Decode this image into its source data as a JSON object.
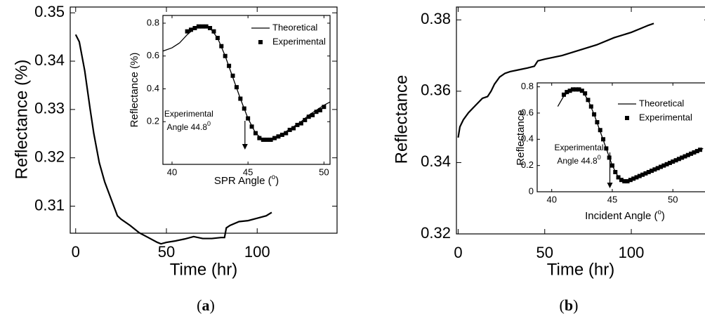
{
  "chart_data": [
    {
      "type": "line",
      "x_label": "Time (hr)",
      "y_label": "Reflectance (%)",
      "caption": [
        "(",
        "a",
        ")"
      ],
      "x": [
        0,
        2,
        5,
        8,
        10,
        13,
        16,
        20,
        23,
        25,
        30,
        35,
        40,
        45,
        47,
        50,
        55,
        60,
        65,
        70,
        75,
        80,
        82,
        83,
        85,
        90,
        95,
        100,
        105,
        108
      ],
      "series": [
        {
          "color": "#000000",
          "values": [
            0.3455,
            0.344,
            0.338,
            0.33,
            0.325,
            0.319,
            0.315,
            0.311,
            0.308,
            0.3073,
            0.306,
            0.3045,
            0.3035,
            0.3025,
            0.3022,
            0.3025,
            0.3028,
            0.3032,
            0.3037,
            0.3033,
            0.3033,
            0.3035,
            0.3035,
            0.3055,
            0.306,
            0.3068,
            0.307,
            0.3075,
            0.308,
            0.3087
          ]
        }
      ],
      "xlim": [
        -3,
        144
      ],
      "xticks": [
        0,
        50,
        100
      ],
      "ylim": [
        0.3044,
        0.3512
      ],
      "yticks": [
        0.31,
        0.32,
        0.33,
        0.34,
        0.35
      ]
    },
    {
      "type": "line",
      "x_label": [
        "SPR Angle (",
        "o",
        ")"
      ],
      "y_label": "Reflectance (%)",
      "legend": "upper right",
      "series": [
        {
          "name": "Theoretical",
          "color": "#000000",
          "marker": "none",
          "x": [
            39.4,
            40,
            40.5,
            41,
            41.5,
            42,
            42.5,
            43,
            43.5,
            44,
            44.5,
            45,
            45.5,
            46,
            46.5,
            47,
            47.5,
            48,
            48.5,
            49,
            49.5,
            50,
            50.4
          ],
          "values": [
            0.63,
            0.65,
            0.68,
            0.73,
            0.77,
            0.78,
            0.77,
            0.71,
            0.6,
            0.47,
            0.34,
            0.22,
            0.13,
            0.09,
            0.09,
            0.11,
            0.14,
            0.17,
            0.2,
            0.24,
            0.27,
            0.3,
            0.32
          ]
        },
        {
          "name": "Experimental",
          "color": "#000000",
          "marker": "square",
          "x": [
            41.0,
            41.25,
            41.5,
            41.75,
            42.0,
            42.25,
            42.5,
            42.75,
            43.0,
            43.25,
            43.5,
            43.75,
            44.0,
            44.25,
            44.5,
            44.75,
            45.0,
            45.25,
            45.5,
            45.75,
            46.0,
            46.25,
            46.5,
            46.75,
            47.0,
            47.25,
            47.5,
            47.75,
            48.0,
            48.25,
            48.5,
            48.75,
            49.0,
            49.25,
            49.5,
            49.75,
            50.0
          ],
          "values": [
            0.75,
            0.76,
            0.77,
            0.78,
            0.78,
            0.78,
            0.77,
            0.75,
            0.71,
            0.66,
            0.6,
            0.54,
            0.48,
            0.41,
            0.34,
            0.28,
            0.22,
            0.17,
            0.13,
            0.1,
            0.09,
            0.09,
            0.09,
            0.1,
            0.11,
            0.12,
            0.13,
            0.15,
            0.16,
            0.18,
            0.19,
            0.21,
            0.23,
            0.24,
            0.26,
            0.27,
            0.29
          ]
        }
      ],
      "annotation": {
        "lines": [
          "Experimental",
          "Angle 44.8"
        ],
        "superscript": "0",
        "x": 44.8
      },
      "xlim": [
        39.4,
        50.4
      ],
      "xticks": [
        40,
        45,
        50
      ],
      "ylim": [
        -0.06,
        0.847
      ],
      "yticks": [
        0.2,
        0.4,
        0.6,
        0.8
      ]
    },
    {
      "type": "line",
      "x_label": "Time (hr)",
      "y_label": "Reflectance",
      "caption": [
        "(",
        "b",
        ")"
      ],
      "x": [
        0,
        1,
        3,
        6,
        10,
        14,
        17,
        19,
        21,
        24,
        27,
        30,
        35,
        40,
        44,
        46,
        50,
        60,
        70,
        80,
        90,
        100,
        105,
        110,
        113
      ],
      "series": [
        {
          "color": "#000000",
          "values": [
            0.347,
            0.35,
            0.352,
            0.354,
            0.356,
            0.358,
            0.3585,
            0.36,
            0.362,
            0.364,
            0.365,
            0.3655,
            0.366,
            0.3665,
            0.367,
            0.3685,
            0.369,
            0.37,
            0.3715,
            0.373,
            0.375,
            0.3765,
            0.3775,
            0.3785,
            0.379
          ]
        }
      ],
      "xlim": [
        -1,
        145
      ],
      "xticks": [
        0,
        50,
        100
      ],
      "ylim": [
        0.32,
        0.3836
      ],
      "yticks": [
        0.32,
        0.34,
        0.36,
        0.38
      ]
    },
    {
      "type": "line",
      "x_label": [
        "Incident Angle (",
        "o",
        ")"
      ],
      "y_label": "Reflectance",
      "legend": "upper right",
      "series": [
        {
          "name": "Theoretical",
          "color": "#000000",
          "marker": "none",
          "x": [
            40.5,
            41,
            41.5,
            42,
            42.5,
            43,
            43.5,
            44,
            44.5,
            45,
            45.5,
            46,
            46.5,
            47,
            47.5,
            48,
            48.5,
            49,
            49.5,
            50,
            50.5,
            51,
            51.5,
            52,
            52.5
          ],
          "values": [
            0.65,
            0.73,
            0.77,
            0.78,
            0.77,
            0.7,
            0.59,
            0.46,
            0.33,
            0.2,
            0.11,
            0.08,
            0.09,
            0.11,
            0.13,
            0.15,
            0.17,
            0.19,
            0.21,
            0.23,
            0.25,
            0.27,
            0.29,
            0.31,
            0.33
          ]
        },
        {
          "name": "Experimental",
          "color": "#000000",
          "marker": "square",
          "x": [
            41.0,
            41.25,
            41.5,
            41.75,
            42.0,
            42.25,
            42.5,
            42.75,
            43.0,
            43.25,
            43.5,
            43.75,
            44.0,
            44.25,
            44.5,
            44.75,
            45.0,
            45.25,
            45.5,
            45.75,
            46.0,
            46.25,
            46.5,
            46.75,
            47.0,
            47.25,
            47.5,
            47.75,
            48.0,
            48.25,
            48.5,
            48.75,
            49.0,
            49.25,
            49.5,
            49.75,
            50.0,
            50.25,
            50.5,
            50.75,
            51.0,
            51.25,
            51.5,
            51.75,
            52.0,
            52.25
          ],
          "values": [
            0.74,
            0.76,
            0.77,
            0.78,
            0.78,
            0.78,
            0.77,
            0.75,
            0.7,
            0.65,
            0.59,
            0.53,
            0.47,
            0.4,
            0.33,
            0.26,
            0.2,
            0.15,
            0.11,
            0.09,
            0.08,
            0.08,
            0.09,
            0.1,
            0.11,
            0.12,
            0.13,
            0.14,
            0.15,
            0.16,
            0.17,
            0.18,
            0.19,
            0.2,
            0.21,
            0.22,
            0.23,
            0.24,
            0.25,
            0.26,
            0.27,
            0.28,
            0.29,
            0.3,
            0.31,
            0.32
          ]
        }
      ],
      "annotation": {
        "lines": [
          "Experimental",
          "Angle 44.8"
        ],
        "superscript": "0",
        "x": 44.8
      },
      "xlim": [
        38.8,
        53.0
      ],
      "xticks": [
        40,
        45,
        50
      ],
      "ylim": [
        0,
        0.83
      ],
      "yticks": [
        0,
        0.2,
        0.4,
        0.6,
        0.8
      ]
    }
  ]
}
